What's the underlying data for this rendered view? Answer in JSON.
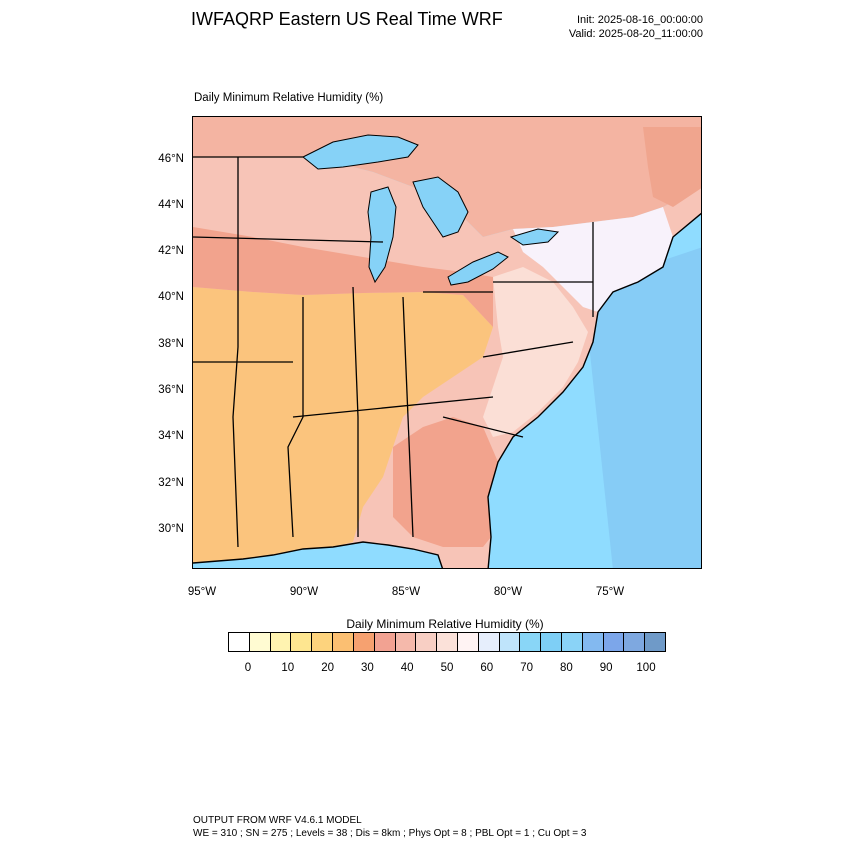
{
  "header": {
    "title": "IWFAQRP Eastern US Real Time WRF",
    "init": "Init: 2025-08-16_00:00:00",
    "valid": "Valid: 2025-08-20_11:00:00"
  },
  "map": {
    "field_title": "Daily Minimum Relative Humidity   (%)",
    "lat_labels": [
      "46°N",
      "44°N",
      "42°N",
      "40°N",
      "38°N",
      "36°N",
      "34°N",
      "32°N",
      "30°N"
    ],
    "lon_labels": [
      "95°W",
      "90°W",
      "85°W",
      "80°W",
      "75°W"
    ],
    "colors": {
      "ocean": "#8fdcff",
      "ocean_deep": "#7fbfee",
      "lake": "#86d2f7",
      "dry_orange": "#fbc47d",
      "salmon": "#f2a38d",
      "pink": "#f7c4b7",
      "light_pink": "#fbdfd6",
      "near_white": "#f8f2fb"
    }
  },
  "colorbar": {
    "title": "Daily Minimum Relative Humidity  (%)",
    "tick_labels": [
      "0",
      "10",
      "20",
      "30",
      "40",
      "50",
      "60",
      "70",
      "80",
      "90",
      "100"
    ],
    "colors": [
      "#ffffff",
      "#fffbd2",
      "#fff3b0",
      "#fee690",
      "#fdd37d",
      "#fbbf72",
      "#f6a170",
      "#f2a292",
      "#f5b9ab",
      "#f8cfc4",
      "#fbe1d9",
      "#fff3f3",
      "#e6eefc",
      "#bfe4fb",
      "#89d6f7",
      "#7ecff6",
      "#8ad3f7",
      "#83b9f0",
      "#7ca6ea",
      "#7ea8e0",
      "#6f9ac8"
    ]
  },
  "footer": {
    "line1": "OUTPUT FROM WRF V4.6.1 MODEL",
    "line2": "WE = 310 ; SN = 275 ; Levels = 38 ; Dis = 8km ; Phys Opt = 8 ; PBL Opt = 1 ; Cu Opt = 3"
  }
}
